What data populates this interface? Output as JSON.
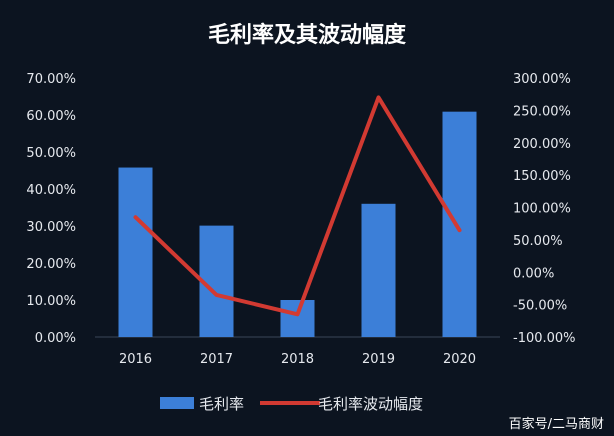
{
  "chart_data": {
    "type": "bar",
    "title": "毛利率及其波动幅度",
    "categories": [
      "2016",
      "2017",
      "2018",
      "2019",
      "2020"
    ],
    "series": [
      {
        "name": "毛利率",
        "type": "bar",
        "axis": "left",
        "color": "#3c7fd8",
        "values": [
          45.8,
          30.1,
          10.0,
          36.0,
          60.9
        ]
      },
      {
        "name": "毛利率波动幅度",
        "type": "line",
        "axis": "right",
        "color": "#d23a32",
        "values": [
          85,
          -35,
          -65,
          270,
          65
        ]
      }
    ],
    "y_left": {
      "min": 0,
      "max": 70,
      "ticks": [
        0,
        10,
        20,
        30,
        40,
        50,
        60,
        70
      ],
      "tick_labels": [
        "0.00%",
        "10.00%",
        "20.00%",
        "30.00%",
        "40.00%",
        "50.00%",
        "60.00%",
        "70.00%"
      ]
    },
    "y_right": {
      "min": -100,
      "max": 300,
      "ticks": [
        -100,
        -50,
        0,
        50,
        100,
        150,
        200,
        250,
        300
      ],
      "tick_labels": [
        "-100.00%",
        "-50.00%",
        "0.00%",
        "50.00%",
        "100.00%",
        "150.00%",
        "200.00%",
        "250.00%",
        "300.00%"
      ]
    },
    "grid": false,
    "legend_position": "bottom"
  },
  "watermark": "百家号/二马商财",
  "colors": {
    "background": "#0c1420",
    "bar": "#3c7fd8",
    "line": "#d23a32",
    "text": "#e6e9ee"
  }
}
